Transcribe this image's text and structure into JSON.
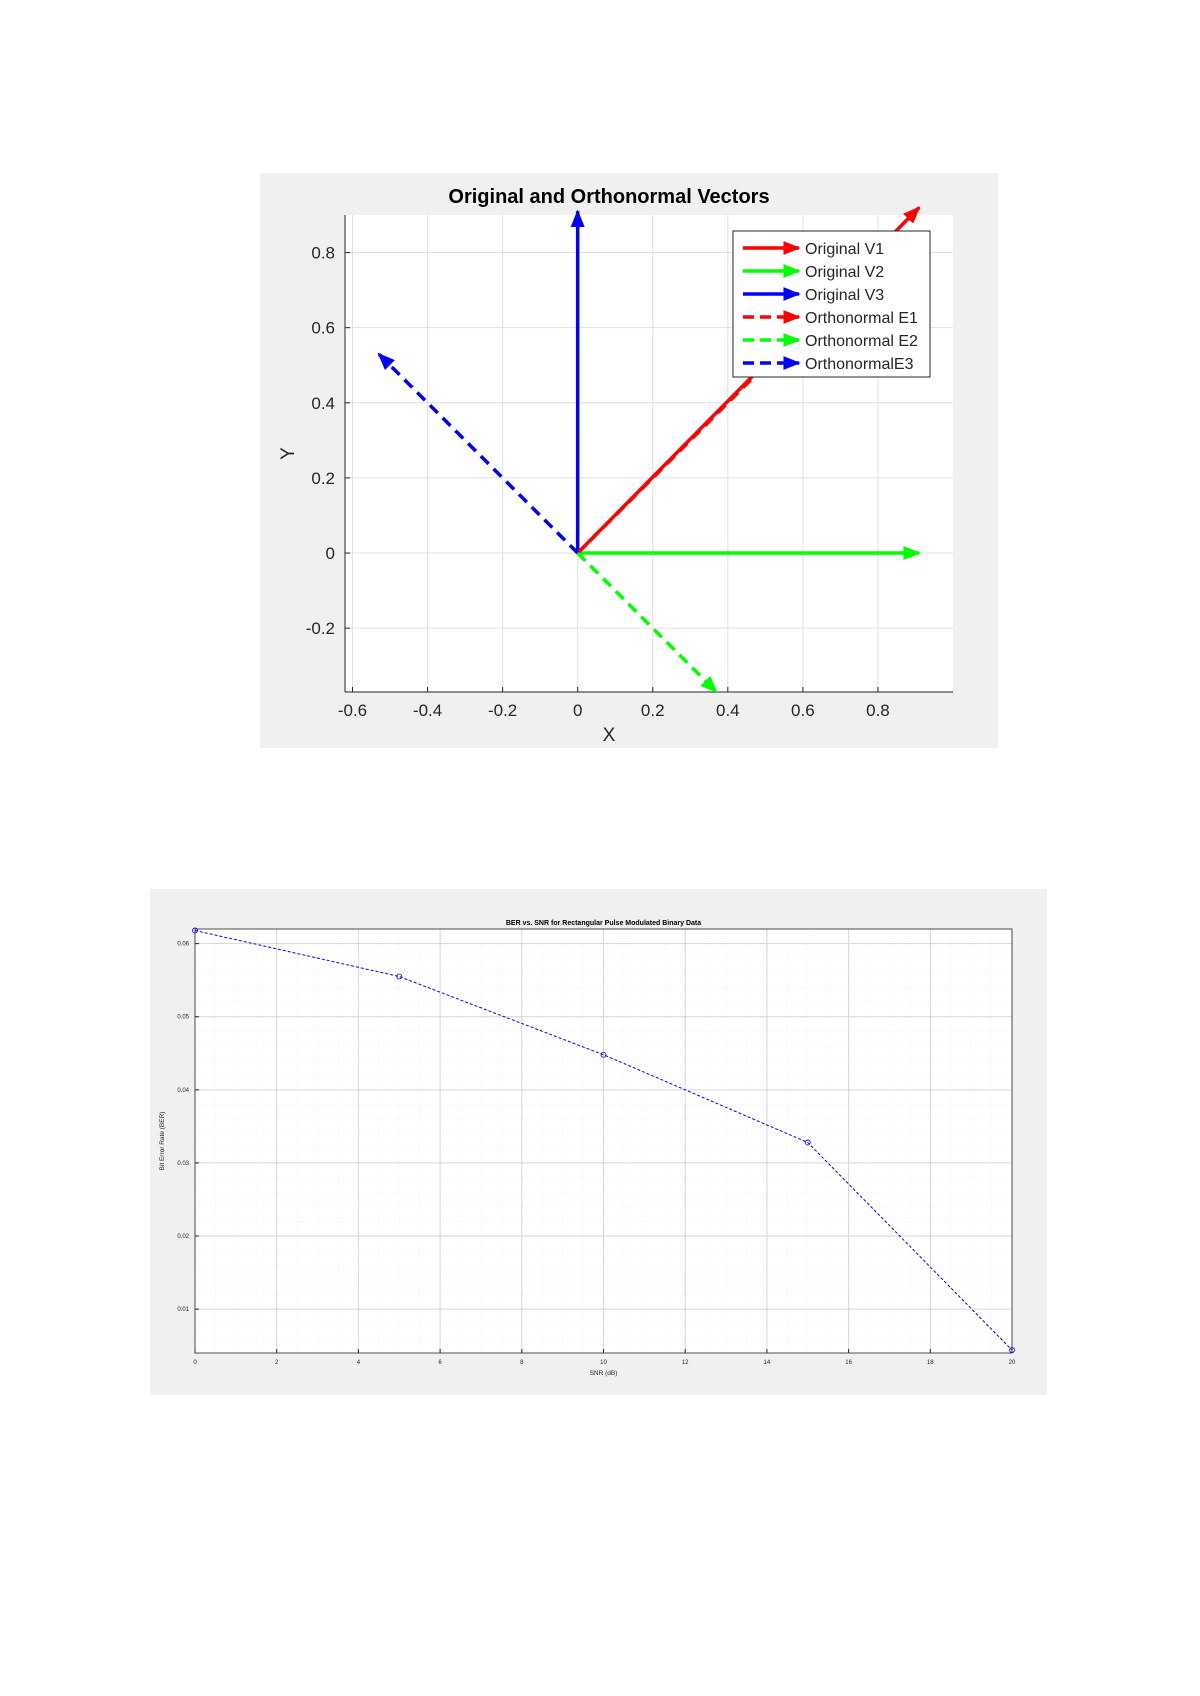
{
  "chart_data": [
    {
      "type": "vector",
      "title": "Original and Orthonormal Vectors",
      "xlabel": "X",
      "ylabel": "Y",
      "xlim": [
        -0.62,
        1.0
      ],
      "ylim": [
        -0.37,
        0.9
      ],
      "xticks": [
        -0.6,
        -0.4,
        -0.2,
        0,
        0.2,
        0.4,
        0.6,
        0.8
      ],
      "xtick_labels": [
        "-0.6",
        "-0.4",
        "-0.2",
        "0",
        "0.2",
        "0.4",
        "0.6",
        "0.8"
      ],
      "yticks": [
        -0.2,
        0,
        0.2,
        0.4,
        0.6,
        0.8
      ],
      "ytick_labels": [
        "-0.2",
        "0",
        "0.2",
        "0.4",
        "0.6",
        "0.8"
      ],
      "grid": true,
      "legend_position": "top-right",
      "series": [
        {
          "name": "Original V1",
          "color": "#ff0000",
          "style": "solid",
          "x0": 0,
          "y0": 0,
          "x1": 0.91,
          "y1": 0.92
        },
        {
          "name": "Original V2",
          "color": "#00ff00",
          "style": "solid",
          "x0": 0,
          "y0": 0,
          "x1": 0.91,
          "y1": 0
        },
        {
          "name": "Original V3",
          "color": "#0000ff",
          "style": "solid",
          "x0": 0,
          "y0": 0,
          "x1": 0,
          "y1": 0.91
        },
        {
          "name": "Orthonormal E1",
          "color": "#ff0000",
          "style": "dashed",
          "x0": 0,
          "y0": 0,
          "x1": 0.58,
          "y1": 0.58
        },
        {
          "name": "Orthonormal E2",
          "color": "#00ff00",
          "style": "dashed",
          "x0": 0,
          "y0": 0,
          "x1": 0.37,
          "y1": -0.37
        },
        {
          "name": "OrthonormalE3",
          "color": "#0000ff",
          "style": "dashed",
          "x0": 0,
          "y0": 0,
          "x1": -0.53,
          "y1": 0.53
        }
      ]
    },
    {
      "type": "line",
      "title": "BER vs. SNR for Rectangular Pulse Modulated Binary Data",
      "xlabel": "SNR (dB)",
      "ylabel": "Bit Error Rate (BER)",
      "xlim": [
        0,
        20
      ],
      "ylim": [
        0.004,
        0.062
      ],
      "xticks": [
        0,
        2,
        4,
        6,
        8,
        10,
        12,
        14,
        16,
        18,
        20
      ],
      "xtick_labels": [
        "0",
        "2",
        "4",
        "6",
        "8",
        "10",
        "12",
        "14",
        "16",
        "18",
        "20"
      ],
      "yticks": [
        0.01,
        0.02,
        0.03,
        0.04,
        0.05,
        0.06
      ],
      "ytick_labels": [
        "0.01",
        "0.02",
        "0.03",
        "0.04",
        "0.05",
        "0.06"
      ],
      "grid": true,
      "minor_grid": true,
      "series": [
        {
          "color": "#0000ff",
          "style": "dashed",
          "marker": "circle",
          "x": [
            0,
            5,
            10,
            15,
            20
          ],
          "y": [
            0.0618,
            0.0555,
            0.0448,
            0.0328,
            0.0044
          ]
        }
      ]
    }
  ]
}
